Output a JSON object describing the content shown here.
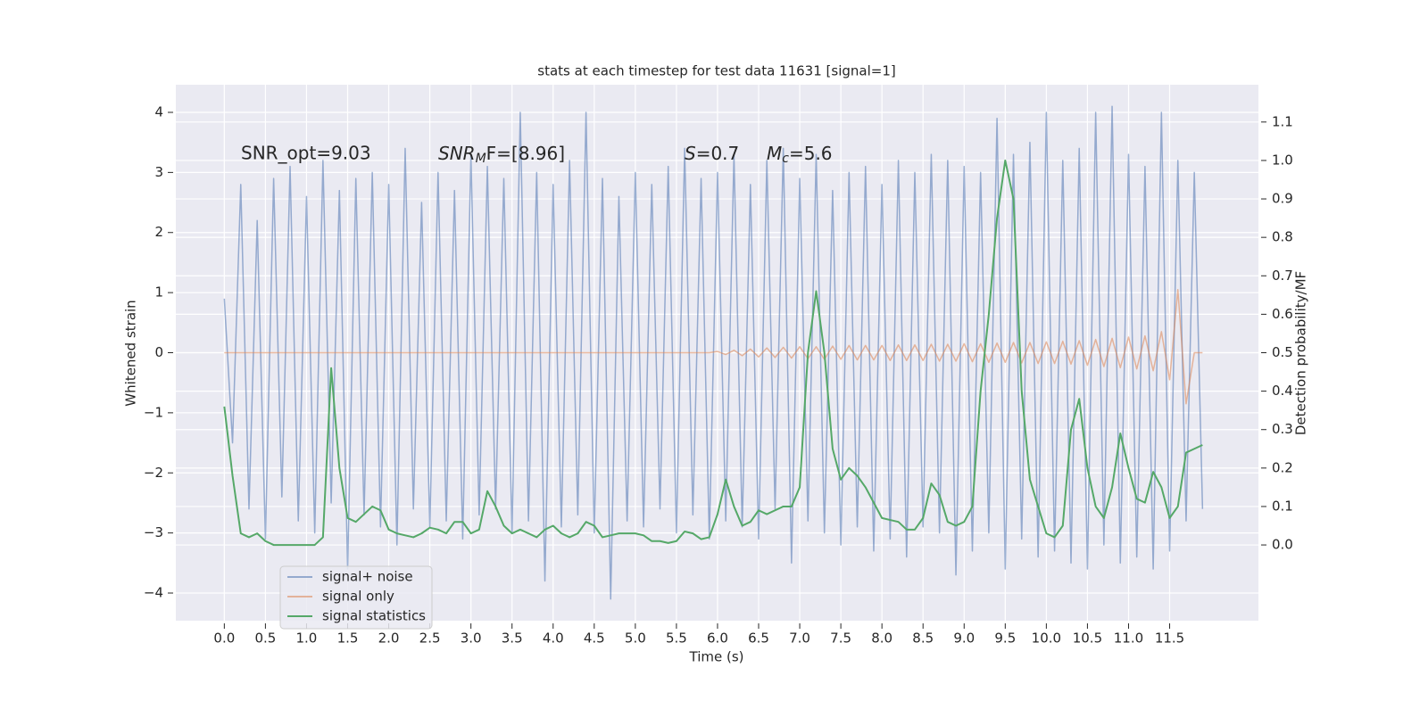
{
  "chart_data": {
    "type": "line",
    "title": "stats at each timestep for test data 11631 [signal=1]",
    "xlabel": "Time (s)",
    "ylabel": "Whitened strain",
    "y2label": "Detection probability/MF",
    "annotations": [
      {
        "text": "SNR_opt=9.03"
      },
      {
        "base": "SNR",
        "sub": "M",
        "rest": "F=[8.96]"
      },
      {
        "base": "S",
        "rest": "=0.7"
      },
      {
        "base": "M",
        "sub": "c",
        "rest": "=5.6"
      }
    ],
    "x": [
      0,
      0.1,
      0.2,
      0.3,
      0.4,
      0.5,
      0.6,
      0.7,
      0.8,
      0.9,
      1,
      1.1,
      1.2,
      1.3,
      1.4,
      1.5,
      1.6,
      1.7,
      1.8,
      1.9,
      2,
      2.1,
      2.2,
      2.3,
      2.4,
      2.5,
      2.6,
      2.7,
      2.8,
      2.9,
      3,
      3.1,
      3.2,
      3.3,
      3.4,
      3.5,
      3.6,
      3.7,
      3.8,
      3.9,
      4,
      4.1,
      4.2,
      4.3,
      4.4,
      4.5,
      4.6,
      4.7,
      4.8,
      4.9,
      5,
      5.1,
      5.2,
      5.3,
      5.4,
      5.5,
      5.6,
      5.7,
      5.8,
      5.9,
      6,
      6.1,
      6.2,
      6.3,
      6.4,
      6.5,
      6.6,
      6.7,
      6.8,
      6.9,
      7,
      7.1,
      7.2,
      7.3,
      7.4,
      7.5,
      7.6,
      7.7,
      7.8,
      7.9,
      8,
      8.1,
      8.2,
      8.3,
      8.4,
      8.5,
      8.6,
      8.7,
      8.8,
      8.9,
      9,
      9.1,
      9.2,
      9.3,
      9.4,
      9.5,
      9.6,
      9.7,
      9.8,
      9.9,
      10,
      10.1,
      10.2,
      10.3,
      10.4,
      10.5,
      10.6,
      10.7,
      10.8,
      10.9,
      11,
      11.1,
      11.2,
      11.3,
      11.4,
      11.5,
      11.6,
      11.7,
      11.8,
      11.9
    ],
    "series": [
      {
        "name": "signal+ noise",
        "color": "#4c72b0",
        "values": [
          0.9,
          -1.5,
          2.8,
          -2.6,
          2.2,
          -3.1,
          2.9,
          -2.4,
          3.1,
          -2.8,
          2.6,
          -3.0,
          3.2,
          -2.5,
          2.7,
          -3.6,
          2.9,
          -2.7,
          3.0,
          -2.9,
          2.8,
          -3.2,
          3.4,
          -2.6,
          2.5,
          -2.9,
          3.0,
          -2.8,
          2.7,
          -3.1,
          3.3,
          -2.7,
          3.1,
          -2.6,
          2.9,
          -3.0,
          4.0,
          -2.8,
          3.0,
          -3.8,
          2.8,
          -2.9,
          3.2,
          -2.7,
          4.0,
          -3.0,
          2.9,
          -4.1,
          2.6,
          -2.8,
          3.0,
          -2.9,
          2.8,
          -2.6,
          3.1,
          -3.0,
          3.4,
          -2.7,
          2.9,
          -3.1,
          3.0,
          -2.8,
          3.3,
          -2.9,
          2.8,
          -3.1,
          3.2,
          -2.6,
          3.4,
          -3.5,
          2.9,
          -2.8,
          3.3,
          -3.0,
          2.7,
          -3.2,
          3.0,
          -2.9,
          3.1,
          -3.3,
          2.8,
          -3.1,
          3.2,
          -3.4,
          3.0,
          -2.9,
          3.3,
          -3.0,
          3.2,
          -3.7,
          3.1,
          -3.3,
          3.0,
          -3.0,
          3.9,
          -3.6,
          3.3,
          -3.1,
          3.5,
          -3.4,
          4.0,
          -3.3,
          3.2,
          -3.5,
          3.4,
          -3.6,
          4.0,
          -3.2,
          4.1,
          -3.5,
          3.3,
          -3.4,
          3.1,
          -3.6,
          4.0,
          -3.3,
          3.2,
          -2.8,
          3.0,
          -2.6
        ]
      },
      {
        "name": "signal only",
        "color": "#dd8452",
        "values": [
          0,
          0,
          0,
          0,
          0,
          0,
          0,
          0,
          0,
          0,
          0,
          0,
          0,
          0,
          0,
          0,
          0,
          0,
          0,
          0,
          0,
          0,
          0,
          0,
          0,
          0,
          0,
          0,
          0,
          0,
          0,
          0,
          0,
          0,
          0,
          0,
          0,
          0,
          0,
          0,
          0,
          0,
          0,
          0,
          0,
          0,
          0,
          0,
          0,
          0,
          0,
          0,
          0,
          0,
          0,
          0,
          0,
          0,
          0,
          0,
          0.02,
          -0.03,
          0.04,
          -0.05,
          0.06,
          -0.07,
          0.08,
          -0.08,
          0.09,
          -0.09,
          0.1,
          -0.1,
          0.1,
          -0.11,
          0.11,
          -0.11,
          0.12,
          -0.12,
          0.12,
          -0.12,
          0.12,
          -0.13,
          0.13,
          -0.13,
          0.13,
          -0.13,
          0.14,
          -0.14,
          0.14,
          -0.14,
          0.15,
          -0.15,
          0.15,
          -0.16,
          0.16,
          -0.16,
          0.17,
          -0.17,
          0.17,
          -0.18,
          0.18,
          -0.18,
          0.19,
          -0.19,
          0.2,
          -0.21,
          0.22,
          -0.23,
          0.24,
          -0.25,
          0.26,
          -0.27,
          0.28,
          -0.3,
          0.35,
          -0.45,
          1.05,
          -0.85,
          0,
          0
        ]
      },
      {
        "name": "signal statistics",
        "color": "#55a868",
        "axis": "y2",
        "values": [
          0.36,
          0.18,
          0.03,
          0.02,
          0.03,
          0.01,
          0,
          0,
          0,
          0,
          0,
          0,
          0.02,
          0.46,
          0.2,
          0.07,
          0.06,
          0.08,
          0.1,
          0.09,
          0.04,
          0.03,
          0.025,
          0.02,
          0.03,
          0.045,
          0.04,
          0.03,
          0.06,
          0.06,
          0.03,
          0.04,
          0.14,
          0.1,
          0.05,
          0.03,
          0.04,
          0.03,
          0.02,
          0.04,
          0.05,
          0.03,
          0.02,
          0.03,
          0.06,
          0.05,
          0.02,
          0.025,
          0.03,
          0.03,
          0.03,
          0.025,
          0.01,
          0.01,
          0.005,
          0.01,
          0.035,
          0.03,
          0.015,
          0.02,
          0.08,
          0.17,
          0.1,
          0.05,
          0.06,
          0.09,
          0.08,
          0.09,
          0.1,
          0.1,
          0.15,
          0.5,
          0.66,
          0.5,
          0.25,
          0.17,
          0.2,
          0.18,
          0.15,
          0.11,
          0.07,
          0.065,
          0.06,
          0.04,
          0.04,
          0.07,
          0.16,
          0.13,
          0.06,
          0.05,
          0.06,
          0.1,
          0.4,
          0.6,
          0.85,
          1.0,
          0.9,
          0.4,
          0.17,
          0.1,
          0.03,
          0.02,
          0.05,
          0.3,
          0.38,
          0.2,
          0.1,
          0.07,
          0.15,
          0.29,
          0.2,
          0.12,
          0.11,
          0.19,
          0.15,
          0.07,
          0.1,
          0.24,
          0.25,
          0.26
        ]
      }
    ],
    "xlim": [
      -0.59,
      12.58
    ],
    "xticks": [
      {
        "value": 0,
        "label": "0.0"
      },
      0.5,
      {
        "value": 1,
        "label": "1.0"
      },
      1.5,
      {
        "value": 2,
        "label": "2.0"
      },
      2.5,
      {
        "value": 3,
        "label": "3.0"
      },
      3.5,
      {
        "value": 4,
        "label": "4.0"
      },
      4.5,
      {
        "value": 5,
        "label": "5.0"
      },
      5.5,
      {
        "value": 6,
        "label": "6.0"
      },
      6.5,
      {
        "value": 7,
        "label": "7.0"
      },
      7.5,
      {
        "value": 8,
        "label": "8.0"
      },
      8.5,
      {
        "value": 9,
        "label": "9.0"
      },
      9.5,
      {
        "value": 10,
        "label": "10.0"
      },
      10.5,
      {
        "value": 11,
        "label": "11.0"
      },
      11.5
    ],
    "ylim": [
      -4.46,
      4.46
    ],
    "yticks": [
      {
        "value": -4,
        "label": "−4"
      },
      {
        "value": -3,
        "label": "−3"
      },
      {
        "value": -2,
        "label": "−2"
      },
      {
        "value": -1,
        "label": "−1"
      },
      0,
      1,
      2,
      3,
      4
    ],
    "y2lim": [
      -0.197,
      1.197
    ],
    "y2ticks": [
      {
        "value": 0,
        "label": "0.0"
      },
      0.1,
      0.2,
      0.3,
      0.4,
      0.5,
      0.6,
      0.7,
      0.8,
      0.9,
      {
        "value": 1,
        "label": "1.0"
      },
      1.1
    ],
    "grid": true,
    "legend": "lower left"
  }
}
